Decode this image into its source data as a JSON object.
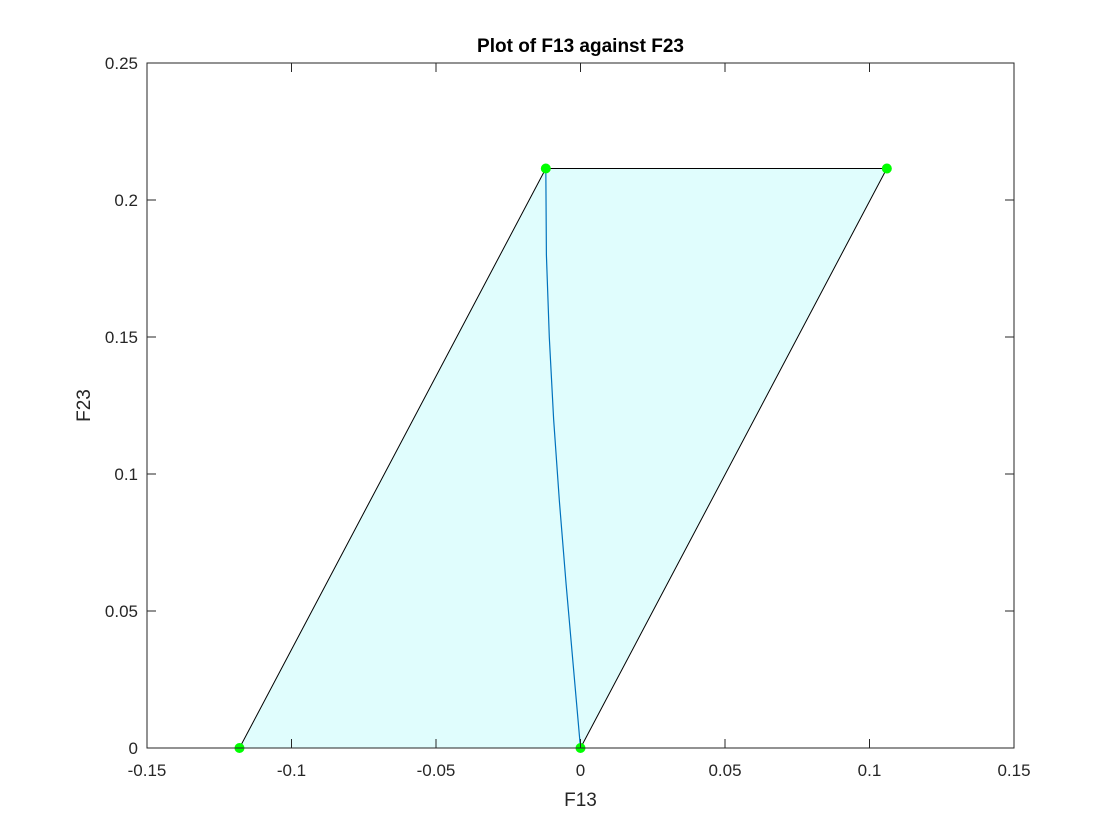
{
  "chart_data": {
    "type": "line",
    "title": "Plot of F13 against F23",
    "xlabel": "F13",
    "ylabel": "F23",
    "xlim": [
      -0.15,
      0.15
    ],
    "ylim": [
      0,
      0.25
    ],
    "xticks": [
      -0.15,
      -0.1,
      -0.05,
      0,
      0.05,
      0.1,
      0.15
    ],
    "xtick_labels": [
      "-0.15",
      "-0.1",
      "-0.05",
      "0",
      "0.05",
      "0.1",
      "0.15"
    ],
    "yticks": [
      0,
      0.05,
      0.1,
      0.15,
      0.2,
      0.25
    ],
    "ytick_labels": [
      "0",
      "0.05",
      "0.1",
      "0.15",
      "0.2",
      "0.25"
    ],
    "grid": false,
    "series": [
      {
        "kind": "filled-polygon",
        "x": [
          -0.118,
          0.0,
          0.106,
          -0.012
        ],
        "y": [
          0.0,
          0.0,
          0.2115,
          0.2115
        ],
        "fill_color": "#e0fdfd",
        "edge_color": "#000000"
      },
      {
        "kind": "curve",
        "x": [
          0.0,
          -0.0025,
          -0.005,
          -0.0073,
          -0.0093,
          -0.0108,
          -0.0118,
          -0.012
        ],
        "y": [
          0.0,
          0.03,
          0.06,
          0.09,
          0.12,
          0.15,
          0.18,
          0.2115
        ],
        "color": "#0072bd"
      },
      {
        "kind": "markers",
        "x": [
          -0.118,
          0.0,
          -0.012,
          0.106
        ],
        "y": [
          0.0,
          0.0,
          0.2115,
          0.2115
        ],
        "color": "#00ff00"
      }
    ]
  }
}
